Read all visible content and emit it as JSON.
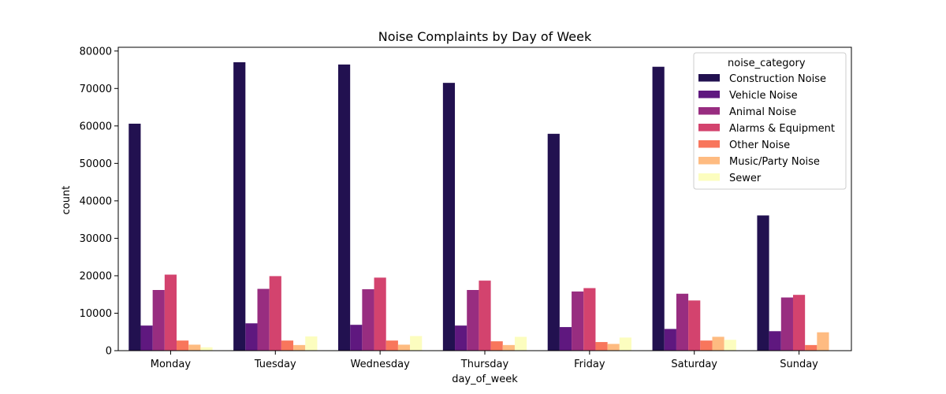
{
  "chart_data": {
    "type": "bar",
    "title": "Noise Complaints by Day of Week",
    "xlabel": "day_of_week",
    "ylabel": "count",
    "ylim": [
      0,
      81000
    ],
    "yticks": [
      0,
      10000,
      20000,
      30000,
      40000,
      50000,
      60000,
      70000,
      80000
    ],
    "grid": false,
    "legend": {
      "title": "noise_category",
      "placement": "top-right"
    },
    "categories": [
      "Monday",
      "Tuesday",
      "Wednesday",
      "Thursday",
      "Friday",
      "Saturday",
      "Sunday"
    ],
    "series": [
      {
        "name": "Construction Noise",
        "color": "#221150",
        "values": [
          60600,
          77000,
          76400,
          71500,
          57900,
          75800,
          36100
        ]
      },
      {
        "name": "Vehicle Noise",
        "color": "#5f187f",
        "values": [
          6700,
          7300,
          6900,
          6700,
          6300,
          5800,
          5200
        ]
      },
      {
        "name": "Animal Noise",
        "color": "#982d80",
        "values": [
          16200,
          16500,
          16400,
          16200,
          15800,
          15200,
          14200
        ]
      },
      {
        "name": "Alarms & Equipment",
        "color": "#d3436e",
        "values": [
          20300,
          19900,
          19500,
          18700,
          16700,
          13400,
          14900
        ]
      },
      {
        "name": "Other Noise",
        "color": "#f8765c",
        "values": [
          2700,
          2700,
          2700,
          2500,
          2300,
          2700,
          1500
        ]
      },
      {
        "name": "Music/Party Noise",
        "color": "#febb81",
        "values": [
          1600,
          1500,
          1600,
          1500,
          1800,
          3700,
          4900
        ]
      },
      {
        "name": "Sewer",
        "color": "#fcfdbf",
        "values": [
          900,
          3800,
          3900,
          3700,
          3500,
          2900,
          0
        ]
      }
    ]
  }
}
